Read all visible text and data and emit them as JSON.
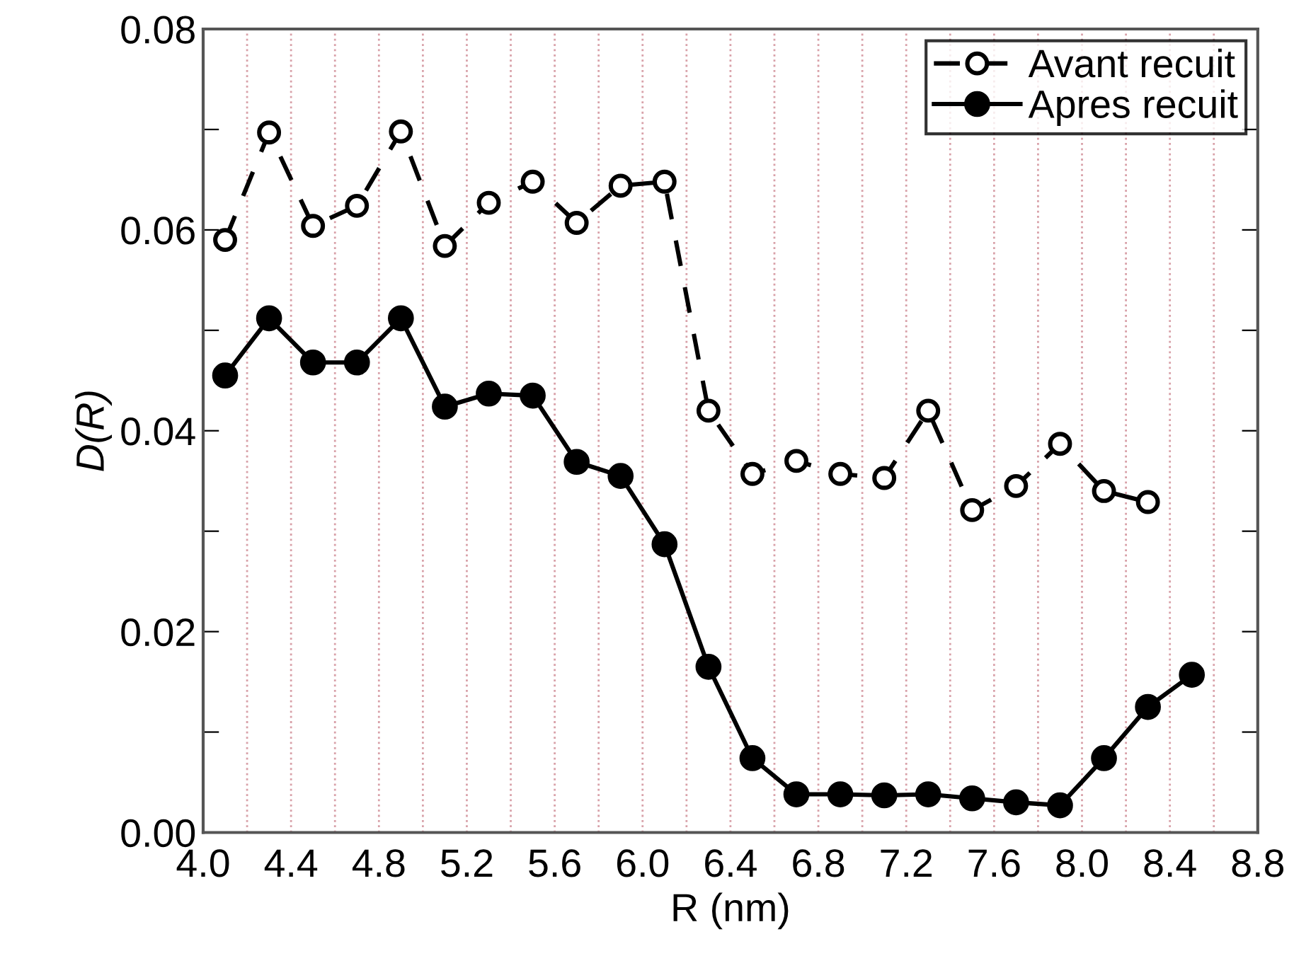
{
  "chart_data": {
    "type": "line",
    "xlabel": "R (nm)",
    "ylabel": "D(R)",
    "x": [
      4.1,
      4.3,
      4.5,
      4.7,
      4.9,
      5.1,
      5.3,
      5.5,
      5.7,
      5.9,
      6.1,
      6.3,
      6.5,
      6.7,
      6.9,
      7.1,
      7.3,
      7.5,
      7.7,
      7.9,
      8.1,
      8.3,
      8.5
    ],
    "series": [
      {
        "name": "Avant recuit",
        "color": "#000000",
        "line_style": "dashed",
        "values": [
          0.059,
          0.0697,
          0.0604,
          0.0624,
          0.0698,
          0.0584,
          0.0627,
          0.0648,
          0.0607,
          0.0644,
          0.0648,
          0.042,
          0.0357,
          0.037,
          0.0357,
          0.0353,
          0.042,
          0.0321,
          0.0345,
          0.0387,
          0.034,
          0.0329,
          null
        ]
      },
      {
        "name": "Apres recuit",
        "color": "#000000",
        "line_style": "solid",
        "values": [
          0.0455,
          0.0512,
          0.0468,
          0.0468,
          0.0512,
          0.0424,
          0.0437,
          0.0435,
          0.0369,
          0.0355,
          0.0287,
          0.0165,
          0.0074,
          0.0038,
          0.0038,
          0.0037,
          0.0038,
          0.0034,
          0.003,
          0.0027,
          0.0074,
          0.0125,
          0.0157
        ]
      }
    ],
    "marker": "circle",
    "xlim": [
      4.0,
      8.8
    ],
    "xticks": [
      {
        "value": 4.0,
        "label": "4.0"
      },
      {
        "value": 4.2,
        "label": null
      },
      4.4,
      {
        "value": 4.6,
        "label": null
      },
      4.8,
      {
        "value": 5.0,
        "label": null
      },
      5.2,
      {
        "value": 5.4,
        "label": null
      },
      5.6,
      {
        "value": 5.8,
        "label": null
      },
      {
        "value": 6.0,
        "label": "6.0"
      },
      {
        "value": 6.2,
        "label": null
      },
      6.4,
      {
        "value": 6.6,
        "label": null
      },
      6.8,
      {
        "value": 7.0,
        "label": null
      },
      7.2,
      {
        "value": 7.4,
        "label": null
      },
      7.6,
      {
        "value": 7.8,
        "label": null
      },
      {
        "value": 8.0,
        "label": "8.0"
      },
      {
        "value": 8.2,
        "label": null
      },
      8.4,
      {
        "value": 8.6,
        "label": null
      },
      8.8
    ],
    "ylim": [
      0.0,
      0.08
    ],
    "yticks": [
      {
        "value": 0.0,
        "label": "0.00"
      },
      {
        "value": 0.01,
        "label": null
      },
      {
        "value": 0.02,
        "label": "0.02"
      },
      {
        "value": 0.03,
        "label": null
      },
      {
        "value": 0.04,
        "label": "0.04"
      },
      {
        "value": 0.05,
        "label": null
      },
      {
        "value": 0.06,
        "label": "0.06"
      },
      {
        "value": 0.07,
        "label": null
      },
      {
        "value": 0.08,
        "label": "0.08"
      }
    ],
    "grid": "x",
    "legend": "top right"
  }
}
